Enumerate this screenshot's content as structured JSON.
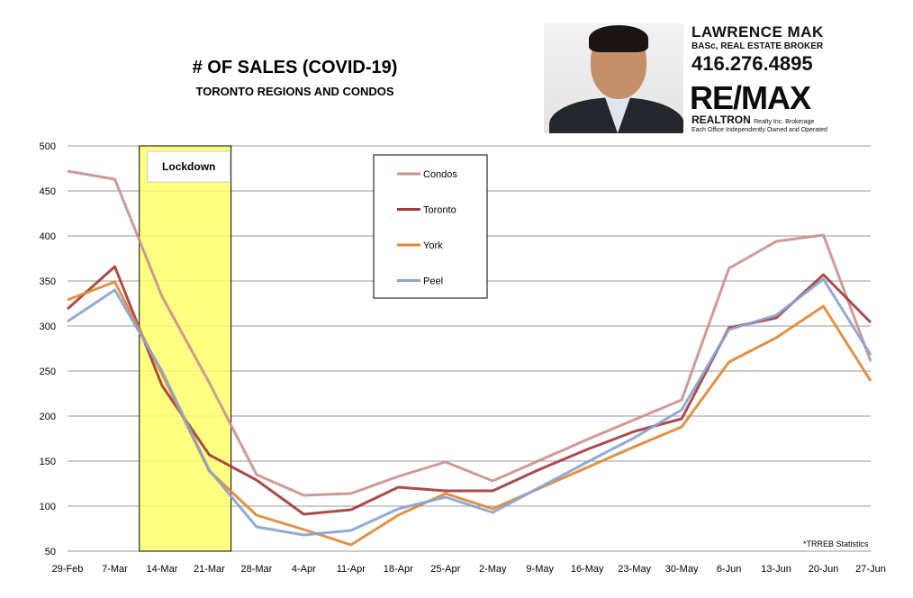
{
  "header": {
    "title": "# OF SALES (COVID-19)",
    "subtitle": "TORONTO REGIONS AND CONDOS"
  },
  "agent_card": {
    "name": "LAWRENCE MAK",
    "role": "BASc, REAL ESTATE BROKER",
    "phone": "416.276.4895",
    "logo": "RE/MAX",
    "brand": "REALTRON",
    "brand_sub": "Realty Inc. Brokerage",
    "tagline": "Each Office Independently Owned and Operated"
  },
  "footnote": "*TRREB Statistics",
  "chart_data": {
    "type": "line",
    "title": "# OF SALES (COVID-19)",
    "subtitle": "TORONTO REGIONS AND CONDOS",
    "xlabel": "",
    "ylabel": "",
    "categories": [
      "29-Feb",
      "7-Mar",
      "14-Mar",
      "21-Mar",
      "28-Mar",
      "4-Apr",
      "11-Apr",
      "18-Apr",
      "25-Apr",
      "2-May",
      "9-May",
      "16-May",
      "23-May",
      "30-May",
      "6-Jun",
      "13-Jun",
      "20-Jun",
      "27-Jun"
    ],
    "yticks": [
      50,
      100,
      150,
      200,
      250,
      300,
      350,
      400,
      450,
      500
    ],
    "ylim": [
      50,
      500
    ],
    "grid": true,
    "legend_position": "top-center",
    "series": [
      {
        "name": "Condos",
        "color": "#cc9090",
        "values": [
          472,
          463,
          333,
          237,
          135,
          112,
          114,
          133,
          149,
          128,
          151,
          174,
          196,
          218,
          364,
          394,
          401,
          261
        ]
      },
      {
        "name": "Toronto",
        "color": "#a43c3c",
        "values": [
          319,
          366,
          234,
          157,
          129,
          91,
          96,
          121,
          117,
          117,
          141,
          163,
          183,
          197,
          298,
          309,
          357,
          304
        ]
      },
      {
        "name": "York",
        "color": "#e08834",
        "values": [
          329,
          349,
          247,
          139,
          90,
          74,
          57,
          90,
          114,
          97,
          120,
          143,
          166,
          188,
          260,
          287,
          322,
          239
        ]
      },
      {
        "name": "Peel",
        "color": "#8aa3d0",
        "values": [
          305,
          340,
          250,
          140,
          77,
          68,
          73,
          97,
          110,
          93,
          121,
          149,
          176,
          207,
          296,
          312,
          352,
          268
        ]
      }
    ],
    "annotation": {
      "label": "Lockdown",
      "from": "14-Mar",
      "to": "21-Mar",
      "color": "#ffff66"
    }
  }
}
